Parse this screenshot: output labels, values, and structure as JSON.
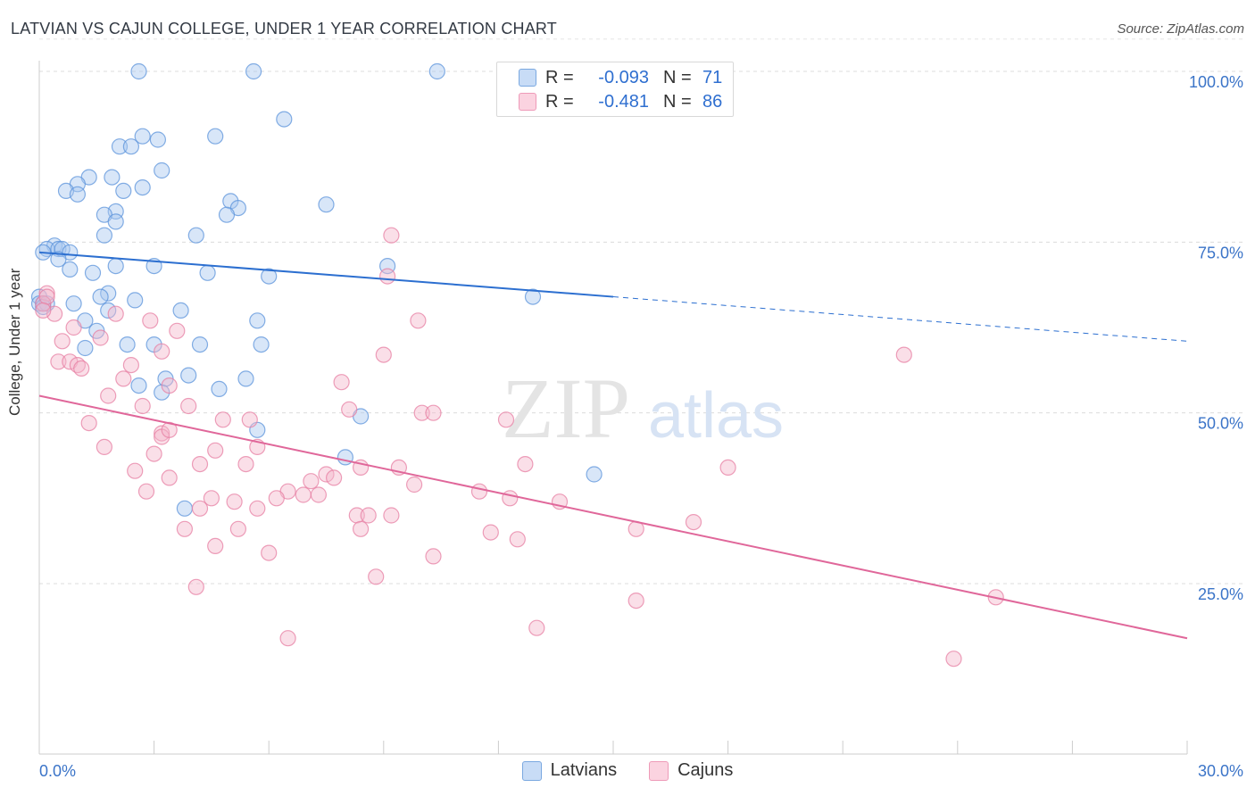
{
  "header": {
    "title": "LATVIAN VS CAJUN COLLEGE, UNDER 1 YEAR CORRELATION CHART",
    "source": "Source: ZipAtlas.com"
  },
  "legend": {
    "rows": [
      {
        "r_label": "R =",
        "r_value": "-0.093",
        "n_label": "N =",
        "n_value": "71",
        "color": "#a8c8f0"
      },
      {
        "r_label": "R =",
        "r_value": "-0.481",
        "n_label": "N =",
        "n_value": "86",
        "color": "#f5b8cc"
      }
    ]
  },
  "watermark": {
    "zip": "ZIP",
    "atlas": "atlas"
  },
  "chart_data": {
    "type": "scatter",
    "title": "LATVIAN VS CAJUN COLLEGE, UNDER 1 YEAR CORRELATION CHART",
    "xlabel": "",
    "ylabel": "College, Under 1 year",
    "xlim": [
      0,
      30
    ],
    "ylim": [
      0,
      105
    ],
    "x_tick_labels": [
      "0.0%",
      "30.0%"
    ],
    "y_tick_labels": [
      "100.0%",
      "75.0%",
      "50.0%",
      "25.0%"
    ],
    "y_ticks": [
      100,
      75,
      50,
      25
    ],
    "grid": true,
    "series": [
      {
        "name": "Latvians",
        "color": "#5b93db",
        "fill": "#a8c8f0",
        "trend": {
          "x0": 0,
          "y0": 73.5,
          "x1": 15,
          "y1": 67.0,
          "x_dash_end": 30,
          "y_dash_end": 60.5,
          "color": "#2c6fd0"
        },
        "points": [
          [
            2.6,
            100
          ],
          [
            5.6,
            100
          ],
          [
            10.4,
            100
          ],
          [
            6.4,
            93
          ],
          [
            2.7,
            90.5
          ],
          [
            4.6,
            90.5
          ],
          [
            3.1,
            90
          ],
          [
            2.1,
            89
          ],
          [
            2.4,
            89
          ],
          [
            3.2,
            85.5
          ],
          [
            1.3,
            84.5
          ],
          [
            1.9,
            84.5
          ],
          [
            1.0,
            83.5
          ],
          [
            0.7,
            82.5
          ],
          [
            2.2,
            82.5
          ],
          [
            2.7,
            83
          ],
          [
            1.0,
            82
          ],
          [
            5.0,
            81
          ],
          [
            5.2,
            80
          ],
          [
            7.5,
            80.5
          ],
          [
            2.0,
            79.5
          ],
          [
            1.7,
            79
          ],
          [
            4.9,
            79
          ],
          [
            2.0,
            78
          ],
          [
            4.1,
            76
          ],
          [
            1.7,
            76
          ],
          [
            0.4,
            74.5
          ],
          [
            0.2,
            74
          ],
          [
            0.5,
            74
          ],
          [
            0.6,
            74
          ],
          [
            0.8,
            73.5
          ],
          [
            0.1,
            73.5
          ],
          [
            0.5,
            72.5
          ],
          [
            2.0,
            71.5
          ],
          [
            3.0,
            71.5
          ],
          [
            9.1,
            71.5
          ],
          [
            0.8,
            71
          ],
          [
            1.4,
            70.5
          ],
          [
            4.4,
            70.5
          ],
          [
            6.0,
            70
          ],
          [
            1.8,
            67.5
          ],
          [
            1.6,
            67
          ],
          [
            2.5,
            66.5
          ],
          [
            12.9,
            67
          ],
          [
            0.9,
            66
          ],
          [
            1.8,
            65
          ],
          [
            3.7,
            65
          ],
          [
            1.2,
            63.5
          ],
          [
            5.7,
            63.5
          ],
          [
            1.5,
            62
          ],
          [
            2.3,
            60
          ],
          [
            3.0,
            60
          ],
          [
            4.2,
            60
          ],
          [
            5.8,
            60
          ],
          [
            1.2,
            59.5
          ],
          [
            2.6,
            54
          ],
          [
            3.3,
            55
          ],
          [
            3.9,
            55.5
          ],
          [
            4.7,
            53.5
          ],
          [
            5.4,
            55
          ],
          [
            3.2,
            53
          ],
          [
            8.4,
            49.5
          ],
          [
            5.7,
            47.5
          ],
          [
            8.0,
            43.5
          ],
          [
            14.5,
            41
          ],
          [
            3.8,
            36
          ],
          [
            0,
            67
          ],
          [
            0,
            66
          ],
          [
            0.1,
            66
          ],
          [
            0.2,
            66
          ],
          [
            0.1,
            65.5
          ]
        ]
      },
      {
        "name": "Cajuns",
        "color": "#e77fa3",
        "fill": "#f5b8cc",
        "trend": {
          "x0": 0,
          "y0": 52.5,
          "x1": 30,
          "y1": 17.0,
          "color": "#e0679a"
        },
        "points": [
          [
            0.2,
            67.5
          ],
          [
            0.4,
            64.5
          ],
          [
            2.0,
            64.5
          ],
          [
            2.9,
            63.5
          ],
          [
            0.9,
            62.5
          ],
          [
            1.6,
            61
          ],
          [
            9.9,
            63.5
          ],
          [
            3.6,
            62
          ],
          [
            0.6,
            60.5
          ],
          [
            3.2,
            59
          ],
          [
            2.4,
            57
          ],
          [
            0.5,
            57.5
          ],
          [
            0.8,
            57.5
          ],
          [
            1.0,
            57
          ],
          [
            1.1,
            56.5
          ],
          [
            9.0,
            58.5
          ],
          [
            22.6,
            58.5
          ],
          [
            9.1,
            70
          ],
          [
            9.2,
            76
          ],
          [
            2.2,
            55
          ],
          [
            3.4,
            54
          ],
          [
            1.8,
            52.5
          ],
          [
            2.7,
            51
          ],
          [
            3.9,
            51
          ],
          [
            7.9,
            54.5
          ],
          [
            8.1,
            50.5
          ],
          [
            10.0,
            50
          ],
          [
            10.3,
            50
          ],
          [
            12.2,
            49
          ],
          [
            4.8,
            49
          ],
          [
            5.5,
            49
          ],
          [
            1.3,
            48.5
          ],
          [
            3.2,
            47
          ],
          [
            3.2,
            46.5
          ],
          [
            3.4,
            47.5
          ],
          [
            5.7,
            45
          ],
          [
            1.7,
            45
          ],
          [
            4.6,
            44.5
          ],
          [
            3.0,
            44
          ],
          [
            5.4,
            42.5
          ],
          [
            4.2,
            42.5
          ],
          [
            9.4,
            42
          ],
          [
            9.8,
            39.5
          ],
          [
            8.4,
            42
          ],
          [
            12.7,
            42.5
          ],
          [
            18.0,
            42
          ],
          [
            2.5,
            41.5
          ],
          [
            7.5,
            41
          ],
          [
            7.7,
            40.5
          ],
          [
            3.4,
            40.5
          ],
          [
            7.1,
            40
          ],
          [
            6.5,
            38.5
          ],
          [
            6.9,
            38
          ],
          [
            7.3,
            38
          ],
          [
            6.2,
            37.5
          ],
          [
            4.5,
            37.5
          ],
          [
            5.1,
            37
          ],
          [
            11.5,
            38.5
          ],
          [
            12.3,
            37.5
          ],
          [
            2.8,
            38.5
          ],
          [
            13.6,
            37
          ],
          [
            5.7,
            36
          ],
          [
            4.2,
            36
          ],
          [
            8.3,
            35
          ],
          [
            8.6,
            35
          ],
          [
            9.2,
            35
          ],
          [
            17.1,
            34
          ],
          [
            3.8,
            33
          ],
          [
            5.2,
            33
          ],
          [
            8.4,
            33
          ],
          [
            11.8,
            32.5
          ],
          [
            12.5,
            31.5
          ],
          [
            15.6,
            33
          ],
          [
            4.6,
            30.5
          ],
          [
            6.0,
            29.5
          ],
          [
            10.3,
            29
          ],
          [
            8.8,
            26
          ],
          [
            15.6,
            22.5
          ],
          [
            25.0,
            23
          ],
          [
            4.1,
            24.5
          ],
          [
            6.5,
            17
          ],
          [
            13.0,
            18.5
          ],
          [
            23.9,
            14
          ],
          [
            0.1,
            66
          ],
          [
            0.2,
            67
          ],
          [
            0.1,
            65
          ]
        ]
      }
    ]
  },
  "bottom_legend": {
    "items": [
      {
        "label": "Latvians",
        "color": "#a8c8f0"
      },
      {
        "label": "Cajuns",
        "color": "#f5b8cc"
      }
    ]
  }
}
